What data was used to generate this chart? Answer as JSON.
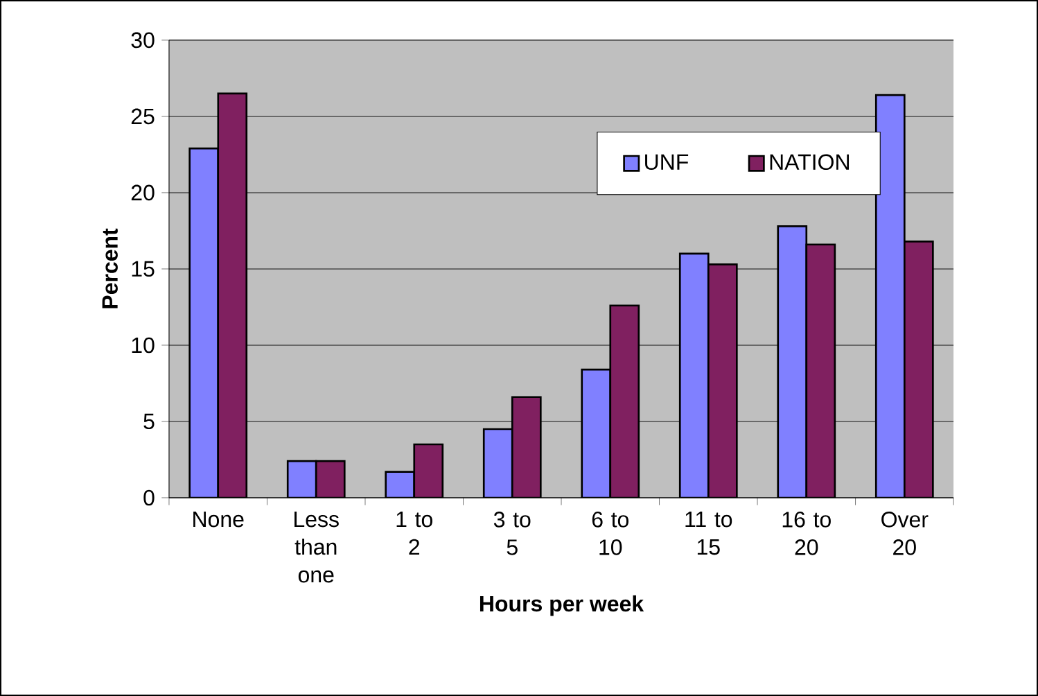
{
  "chart_data": {
    "type": "bar",
    "xlabel": "Hours per week",
    "ylabel": "Percent",
    "categories": [
      "None",
      "Less than one",
      "1 to 2",
      "3 to 5",
      "6 to 10",
      "11 to 15",
      "16 to 20",
      "Over 20"
    ],
    "series": [
      {
        "name": "UNF",
        "color": "#8080ff",
        "values": [
          22.9,
          2.4,
          1.7,
          4.5,
          8.4,
          16.0,
          17.8,
          26.4
        ]
      },
      {
        "name": "NATION",
        "color": "#802060",
        "values": [
          26.5,
          2.4,
          3.5,
          6.6,
          12.6,
          15.3,
          16.6,
          16.8
        ]
      }
    ],
    "ylim": [
      0,
      30
    ],
    "yticks": [
      0,
      5,
      10,
      15,
      20,
      25,
      30
    ],
    "grid": "y",
    "legend": "top right"
  }
}
